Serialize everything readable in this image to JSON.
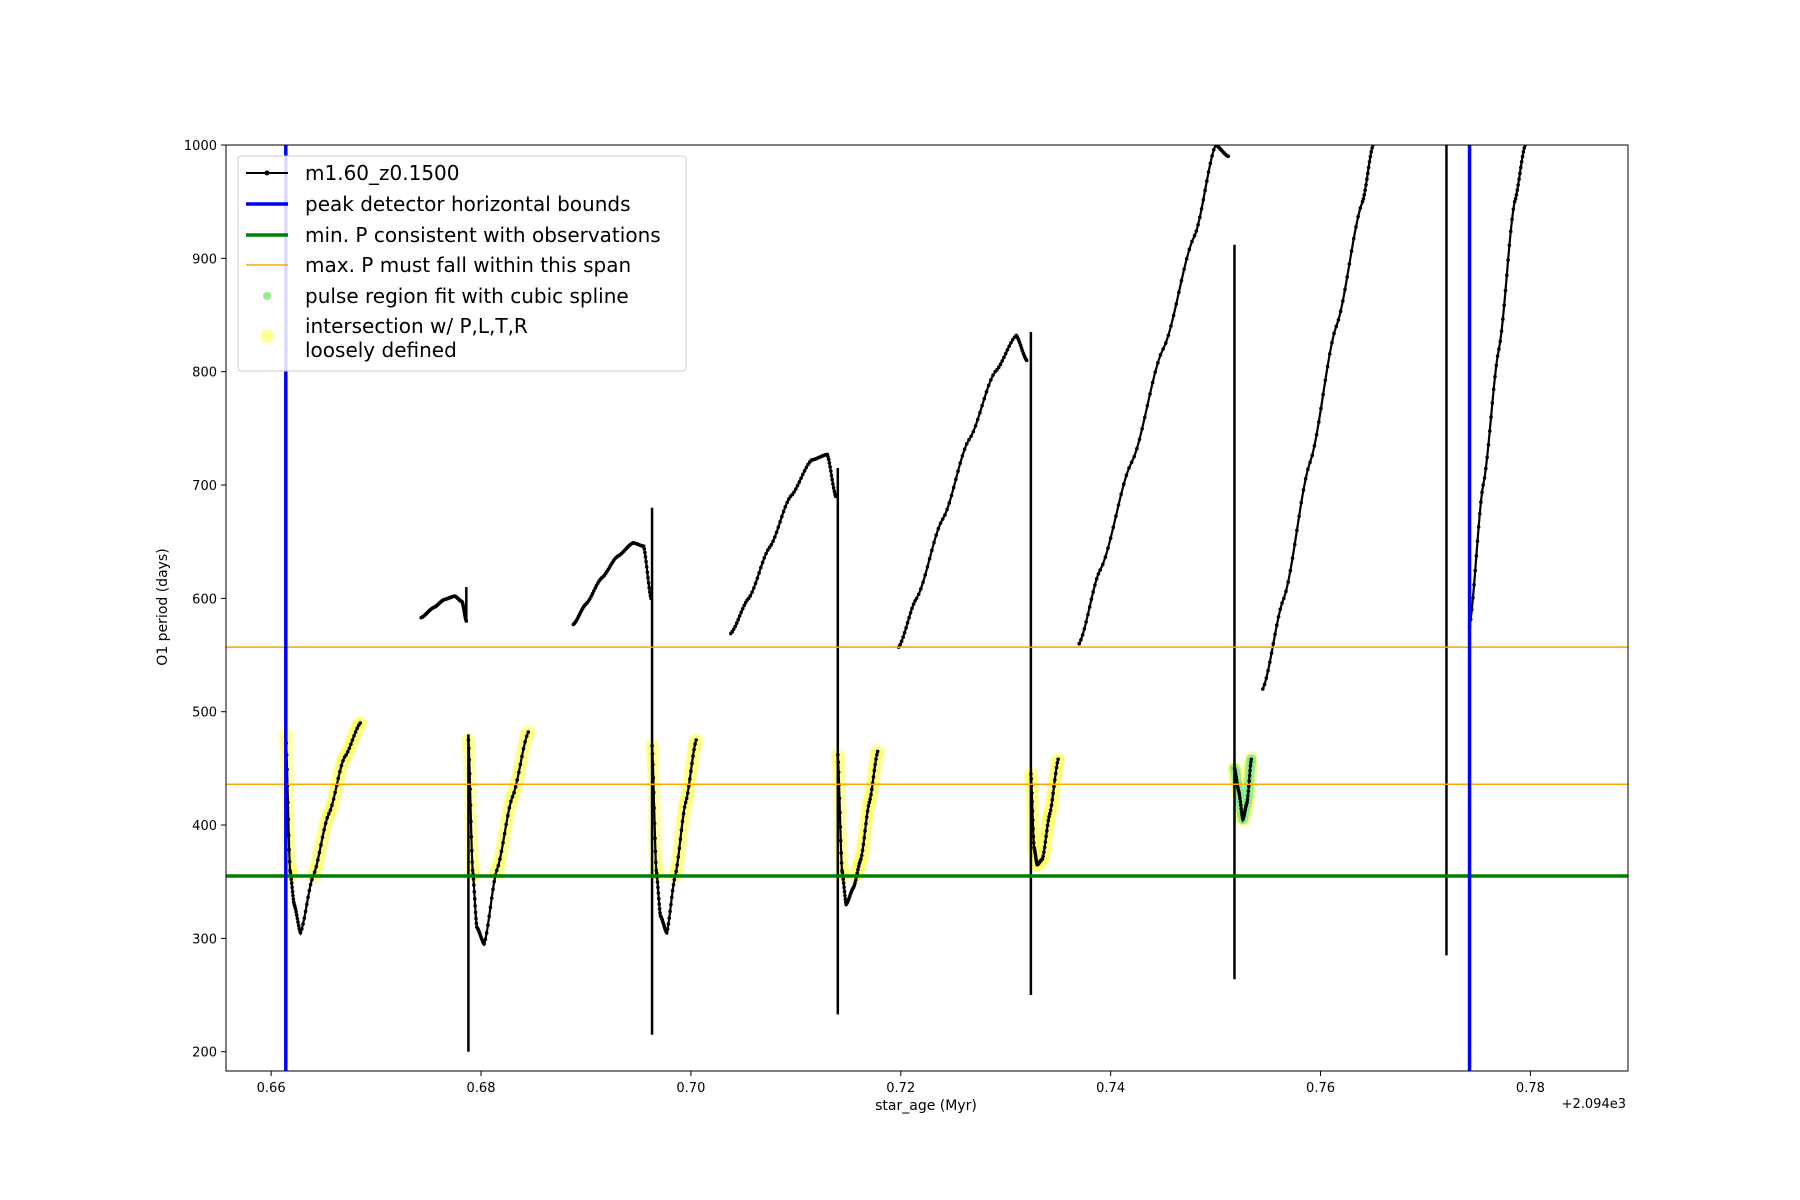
{
  "chart_data": {
    "type": "line",
    "xlabel": "star_age (Myr)",
    "ylabel": "O1 period (days)",
    "x_offset_label": "+2.094e3",
    "xlim": [
      0.6557,
      0.7893
    ],
    "ylim": [
      183,
      1000
    ],
    "xticks": [
      0.66,
      0.68,
      0.7,
      0.72,
      0.74,
      0.76,
      0.78
    ],
    "xtick_labels": [
      "0.66",
      "0.68",
      "0.70",
      "0.72",
      "0.74",
      "0.76",
      "0.78"
    ],
    "yticks": [
      200,
      300,
      400,
      500,
      600,
      700,
      800,
      900,
      1000
    ],
    "ytick_labels": [
      "200",
      "300",
      "400",
      "500",
      "600",
      "700",
      "800",
      "900",
      "1000"
    ],
    "grid": false,
    "legend_placement": "upper-left",
    "legend": [
      {
        "label": "m1.60_z0.1500",
        "kind": "line-marker",
        "color": "#000000"
      },
      {
        "label": "peak detector horizontal bounds",
        "kind": "line",
        "color": "#0000ff"
      },
      {
        "label": "min. P consistent with observations",
        "kind": "line",
        "color": "#008000"
      },
      {
        "label": "max. P must fall within this span",
        "kind": "line",
        "color": "#ffa500"
      },
      {
        "label": "pulse region fit with cubic spline",
        "kind": "dot",
        "color": "#90ee90"
      },
      {
        "label": "intersection w/ P,L,T,R",
        "label2": "loosely defined",
        "kind": "bigdot",
        "color": "#ffff99"
      }
    ],
    "vertical_bounds": [
      0.6614,
      0.7742
    ],
    "min_P": 355,
    "max_P_span": [
      436,
      557
    ],
    "series": [
      {
        "name": "m1.60_z0.1500",
        "color": "#000000",
        "pulse_branches": [
          {
            "x": [
              0.6614,
              0.6618,
              0.6622,
              0.6628,
              0.664,
              0.6655,
              0.667,
              0.6685
            ],
            "y": [
              480,
              360,
              330,
              305,
              355,
              410,
              460,
              490
            ]
          },
          {
            "x": [
              0.6788,
              0.6792,
              0.6796,
              0.6803,
              0.6815,
              0.683,
              0.6845
            ],
            "y": [
              475,
              360,
              310,
              295,
              360,
              425,
              482
            ]
          },
          {
            "x": [
              0.6963,
              0.6967,
              0.6971,
              0.6977,
              0.6985,
              0.6995,
              0.7005
            ],
            "y": [
              470,
              360,
              320,
              305,
              355,
              420,
              475
            ]
          },
          {
            "x": [
              0.714,
              0.7144,
              0.7148,
              0.7155,
              0.7162,
              0.717,
              0.7178
            ],
            "y": [
              462,
              360,
              330,
              345,
              370,
              420,
              465
            ]
          },
          {
            "x": [
              0.7324,
              0.7327,
              0.733,
              0.7335,
              0.7342,
              0.735
            ],
            "y": [
              445,
              380,
              365,
              370,
              410,
              458
            ]
          },
          {
            "x": [
              0.7518,
              0.7522,
              0.7526,
              0.753,
              0.7534
            ],
            "y": [
              450,
              430,
              405,
              420,
              458
            ]
          }
        ],
        "upper_arcs": [
          {
            "x": [
              0.6743,
              0.6755,
              0.6765,
              0.6775,
              0.6782,
              0.6786
            ],
            "y": [
              583,
              592,
              599,
              602,
              597,
              580
            ]
          },
          {
            "x": [
              0.6888,
              0.69,
              0.6915,
              0.693,
              0.6945,
              0.6955,
              0.6962
            ],
            "y": [
              577,
              595,
              618,
              637,
              649,
              646,
              600
            ]
          },
          {
            "x": [
              0.7038,
              0.7055,
              0.7075,
              0.7095,
              0.7115,
              0.713,
              0.7138
            ],
            "y": [
              569,
              600,
              645,
              690,
              722,
              727,
              690
            ]
          },
          {
            "x": [
              0.7198,
              0.7215,
              0.724,
              0.7265,
              0.729,
              0.731,
              0.732
            ],
            "y": [
              557,
              600,
              670,
              740,
              800,
              832,
              810
            ]
          },
          {
            "x": [
              0.737,
              0.739,
              0.742,
              0.745,
              0.748,
              0.75,
              0.7512
            ],
            "y": [
              560,
              625,
              720,
              820,
              920,
              1000,
              990
            ]
          },
          {
            "x": [
              0.7545,
              0.7565,
              0.759,
              0.7615,
              0.764,
              0.765
            ],
            "y": [
              520,
              600,
              720,
              840,
              950,
              1000
            ]
          },
          {
            "x": [
              0.7742,
              0.7755,
              0.777,
              0.7785,
              0.7795
            ],
            "y": [
              575,
              700,
              820,
              950,
              1000
            ]
          }
        ],
        "spikes": [
          {
            "x": 0.6614,
            "y": [
              190,
              495
            ]
          },
          {
            "x": 0.6788,
            "y": [
              200,
              480
            ]
          },
          {
            "x": 0.6786,
            "y": [
              580,
              610
            ]
          },
          {
            "x": 0.6963,
            "y": [
              215,
              680
            ]
          },
          {
            "x": 0.714,
            "y": [
              233,
              715
            ]
          },
          {
            "x": 0.7324,
            "y": [
              250,
              835
            ]
          },
          {
            "x": 0.7518,
            "y": [
              264,
              912
            ]
          },
          {
            "x": 0.772,
            "y": [
              285,
              1000
            ]
          }
        ]
      }
    ]
  }
}
